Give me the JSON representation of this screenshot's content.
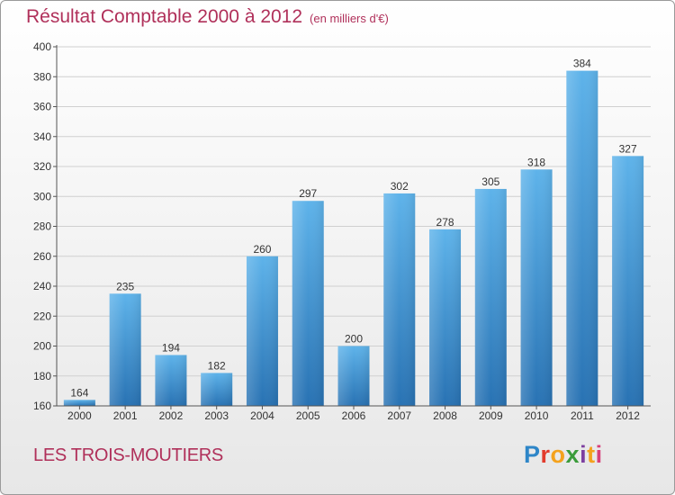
{
  "title": "Résultat Comptable 2000 à 2012",
  "subtitle": "(en milliers d'€)",
  "commune": "LES TROIS-MOUTIERS",
  "logo": {
    "letters": [
      "P",
      "r",
      "o",
      "x",
      "i",
      "t",
      "i"
    ]
  },
  "colors": {
    "bar_top": "#5eb3ea",
    "bar_bottom": "#2872b3",
    "title": "#b0305a",
    "grid": "#d0d0d0"
  },
  "chart_data": {
    "type": "bar",
    "title": "Résultat Comptable 2000 à 2012",
    "ylabel": "en milliers d'€",
    "categories": [
      "2000",
      "2001",
      "2002",
      "2003",
      "2004",
      "2005",
      "2006",
      "2007",
      "2008",
      "2009",
      "2010",
      "2011",
      "2012"
    ],
    "values": [
      164,
      235,
      194,
      182,
      260,
      297,
      200,
      302,
      278,
      305,
      318,
      384,
      327
    ],
    "ylim": [
      160,
      400
    ],
    "yticks": [
      160,
      180,
      200,
      220,
      240,
      260,
      280,
      300,
      320,
      340,
      360,
      380,
      400
    ],
    "grid": true
  }
}
